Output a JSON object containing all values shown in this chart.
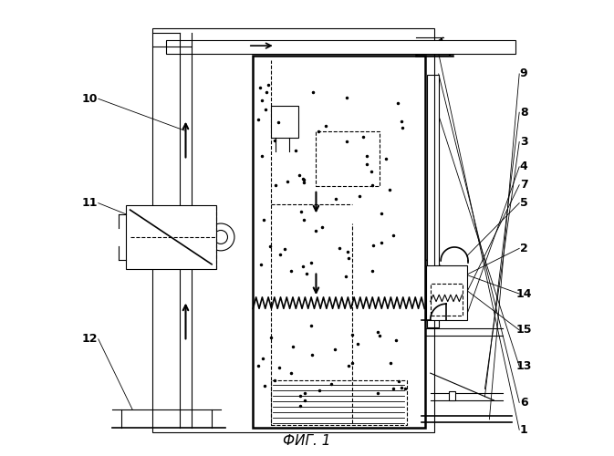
{
  "title": "ФИГ. 1",
  "background_color": "#ffffff",
  "line_color": "#000000"
}
